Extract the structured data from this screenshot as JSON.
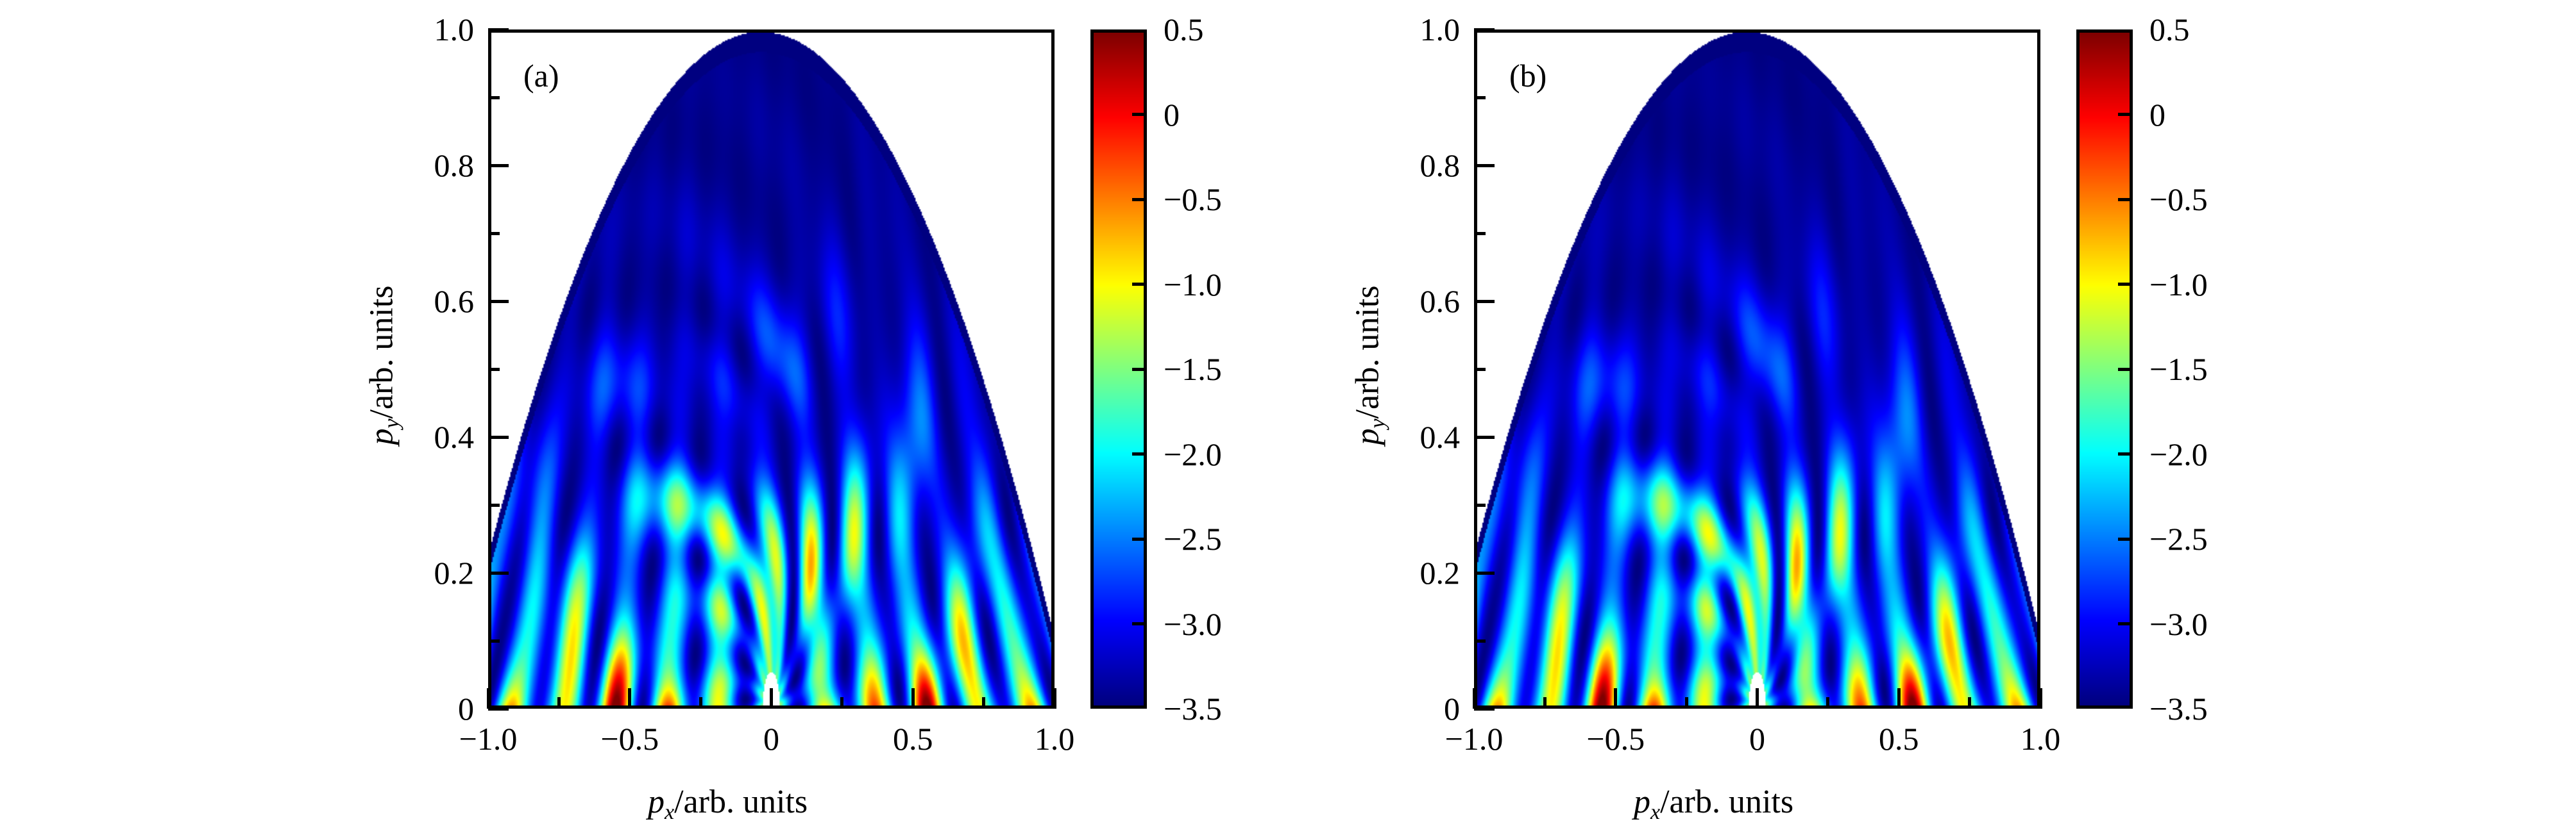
{
  "chart_data": [
    {
      "type": "heatmap",
      "panel_label": "(a)",
      "xlabel_var": "p",
      "xlabel_sub": "x",
      "xlabel_rest": "/arb. units",
      "ylabel_var": "p",
      "ylabel_sub": "y",
      "ylabel_rest": "/arb. units",
      "xlim": [
        -1.0,
        1.0
      ],
      "ylim": [
        0,
        1.0
      ],
      "xticks": [
        -1.0,
        -0.5,
        0,
        0.5,
        1.0
      ],
      "xtick_labels": [
        "−1.0",
        "−0.5",
        "0",
        "0.5",
        "1.0"
      ],
      "yticks": [
        0,
        0.2,
        0.4,
        0.6,
        0.8,
        1.0
      ],
      "ytick_labels": [
        "0",
        "0.2",
        "0.4",
        "0.6",
        "0.8",
        "1.0"
      ],
      "colorbar": {
        "colormap": "jet",
        "range": [
          -3.5,
          0.5
        ],
        "ticks": [
          0.5,
          0,
          -0.5,
          -1.0,
          -1.5,
          -2.0,
          -2.5,
          -3.0,
          -3.5
        ],
        "tick_labels": [
          "0.5",
          "0",
          "−0.5",
          "−1.0",
          "−1.5",
          "−2.0",
          "−2.5",
          "−3.0",
          "−3.5"
        ]
      }
    },
    {
      "type": "heatmap",
      "panel_label": "(b)",
      "xlabel_var": "p",
      "xlabel_sub": "x",
      "xlabel_rest": "/arb. units",
      "ylabel_var": "p",
      "ylabel_sub": "y",
      "ylabel_rest": "/arb. units",
      "xlim": [
        -1.0,
        1.0
      ],
      "ylim": [
        0,
        1.0
      ],
      "xticks": [
        -1.0,
        -0.5,
        0,
        0.5,
        1.0
      ],
      "xtick_labels": [
        "−1.0",
        "−0.5",
        "0",
        "0.5",
        "1.0"
      ],
      "yticks": [
        0,
        0.2,
        0.4,
        0.6,
        0.8,
        1.0
      ],
      "ytick_labels": [
        "0",
        "0.2",
        "0.4",
        "0.6",
        "0.8",
        "1.0"
      ],
      "colorbar": {
        "colormap": "jet",
        "range": [
          -3.5,
          0.5
        ],
        "ticks": [
          0.5,
          0,
          -0.5,
          -1.0,
          -1.5,
          -2.0,
          -2.5,
          -3.0,
          -3.5
        ],
        "tick_labels": [
          "0.5",
          "0",
          "−0.5",
          "−1.0",
          "−1.5",
          "−2.0",
          "−2.5",
          "−3.0",
          "−3.5"
        ]
      }
    }
  ]
}
